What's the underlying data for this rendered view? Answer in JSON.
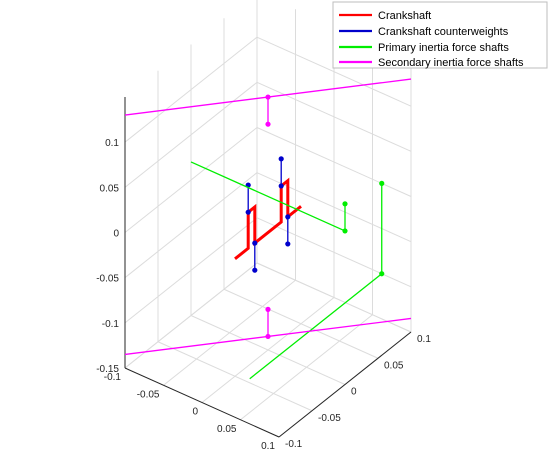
{
  "chart_data": {
    "type": "line3d",
    "title": "",
    "grid": true,
    "legend_placement": "top-right",
    "axes": {
      "x": {
        "range": [
          -0.1,
          0.1
        ],
        "ticks": [
          "-0.1",
          "-0.05",
          "0",
          "0.05",
          "0.1"
        ]
      },
      "y": {
        "range": [
          -0.1,
          0.1
        ],
        "ticks": [
          "-0.1",
          "-0.05",
          "0",
          "0.05",
          "0.1"
        ]
      },
      "z": {
        "range": [
          -0.15,
          0.15
        ],
        "ticks": [
          "-0.15",
          "-0.1",
          "-0.05",
          "0",
          "0.05",
          "0.1"
        ]
      }
    },
    "series": [
      {
        "name": "Crankshaft",
        "color": "#ff0000",
        "segments": [
          [
            [
              0,
              0.05,
              -0.02
            ],
            [
              0,
              0.03,
              -0.02
            ],
            [
              0,
              0.03,
              0.02
            ],
            [
              0,
              0.02,
              0.02
            ],
            [
              0,
              0.02,
              -0.02
            ],
            [
              0,
              -0.02,
              -0.02
            ],
            [
              0,
              -0.02,
              0.02
            ],
            [
              0,
              -0.03,
              0.02
            ],
            [
              0,
              -0.03,
              -0.02
            ],
            [
              0,
              -0.05,
              -0.02
            ]
          ]
        ]
      },
      {
        "name": "Crankshaft counterweights",
        "color": "#0000cc",
        "segments": [
          [
            [
              0,
              0.03,
              -0.02
            ],
            [
              0,
              0.03,
              -0.05
            ]
          ],
          [
            [
              0,
              0.02,
              0.02
            ],
            [
              0,
              0.02,
              0.05
            ]
          ],
          [
            [
              0,
              -0.02,
              -0.02
            ],
            [
              0,
              -0.02,
              -0.05
            ]
          ],
          [
            [
              0,
              -0.03,
              0.02
            ],
            [
              0,
              -0.03,
              0.05
            ]
          ]
        ]
      },
      {
        "name": "Primary inertia force shafts",
        "color": "#00ee00",
        "segments": [
          [
            [
              -0.1,
              0,
              0.02
            ],
            [
              0.1,
              0,
              0.02
            ]
          ],
          [
            [
              0.1,
              0,
              0.02
            ],
            [
              0.1,
              0,
              0.05
            ]
          ],
          [
            [
              0.062,
              0.1,
              0.0
            ],
            [
              0.062,
              0.1,
              -0.1
            ]
          ],
          [
            [
              0.062,
              0.1,
              -0.1
            ],
            [
              0.062,
              -0.1,
              -0.1
            ]
          ]
        ],
        "lines_only": [
          0,
          3
        ],
        "pins": [
          1,
          2
        ]
      },
      {
        "name": "Secondary inertia force shafts",
        "color": "#ff00ff",
        "segments": [
          [
            [
              -0.1,
              -0.1,
              0.13
            ],
            [
              0.1,
              0.1,
              0.13
            ]
          ],
          [
            [
              0,
              0,
              0.13
            ],
            [
              0,
              0,
              0.1
            ]
          ],
          [
            [
              -0.1,
              -0.1,
              -0.135
            ],
            [
              0.1,
              0.1,
              -0.135
            ]
          ],
          [
            [
              0,
              0,
              -0.135
            ],
            [
              0,
              0,
              -0.105
            ]
          ]
        ],
        "lines_only": [
          0,
          2
        ],
        "pins": [
          1,
          3
        ]
      }
    ]
  }
}
